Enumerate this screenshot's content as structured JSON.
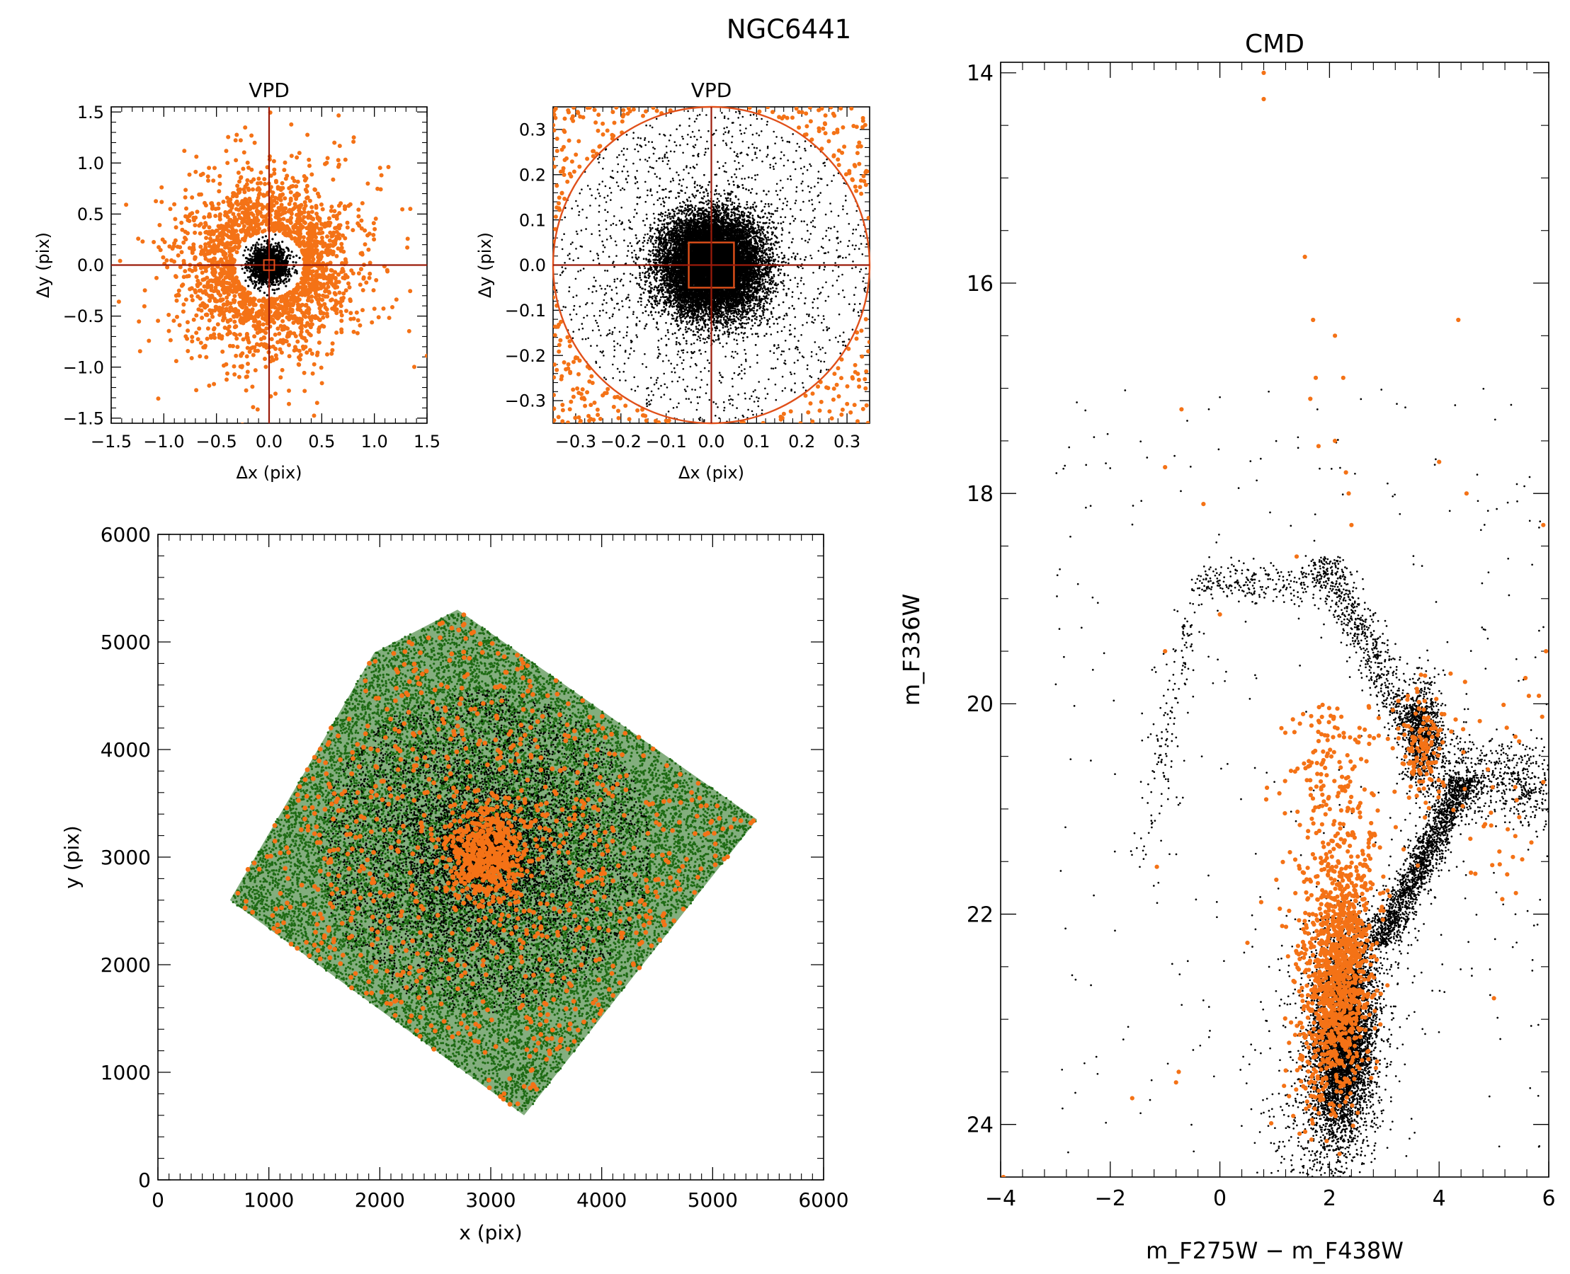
{
  "figure_title": "NGC6441",
  "colors": {
    "orange": "#f47216",
    "green": "#1e6b14",
    "black": "#000000",
    "line": "#9b1b0a",
    "circle": "#e0501a"
  },
  "chart_data": [
    {
      "id": "vpd1",
      "type": "scatter",
      "title": "VPD",
      "xlabel": "Δx (pix)",
      "ylabel": "Δy (pix)",
      "xlim": [
        -1.5,
        1.5
      ],
      "ylim": [
        -1.55,
        1.55
      ],
      "xticks": [
        -1.5,
        -1.0,
        -0.5,
        0.0,
        0.5,
        1.0,
        1.5
      ],
      "xtick_labels": [
        "−1.5",
        "−1.0",
        "−0.5",
        "0.0",
        "0.5",
        "1.0",
        "1.5"
      ],
      "yticks": [
        -1.5,
        -1.0,
        -0.5,
        0.0,
        0.5,
        1.0,
        1.5
      ],
      "ytick_labels": [
        "−1.5",
        "−1.0",
        "−0.5",
        "0.0",
        "0.5",
        "1.0",
        "1.5"
      ],
      "selection_radius": 0.33,
      "zoom_box_halfwidth": 0.05,
      "crosshair": [
        0,
        0
      ],
      "series": [
        {
          "role": "members",
          "color": "#000000",
          "distribution": "gaussian",
          "sigma": 0.09,
          "count": 1500
        },
        {
          "role": "rejected",
          "color": "#f47216",
          "distribution": "ring",
          "r_min": 0.33,
          "scale": 0.45,
          "count": 2100
        }
      ]
    },
    {
      "id": "vpd2",
      "type": "scatter",
      "title": "VPD",
      "xlabel": "Δx (pix)",
      "ylabel": "Δy (pix)",
      "xlim": [
        -0.35,
        0.35
      ],
      "ylim": [
        -0.35,
        0.35
      ],
      "xticks": [
        -0.3,
        -0.2,
        -0.1,
        0.0,
        0.1,
        0.2,
        0.3
      ],
      "xtick_labels": [
        "−0.3",
        "−0.2",
        "−0.1",
        "0.0",
        "0.1",
        "0.2",
        "0.3"
      ],
      "yticks": [
        -0.3,
        -0.2,
        -0.1,
        0.0,
        0.1,
        0.2,
        0.3
      ],
      "ytick_labels": [
        "−0.3",
        "−0.2",
        "−0.1",
        "0.0",
        "0.1",
        "0.2",
        "0.3"
      ],
      "selection_radius": 0.35,
      "zoom_box_halfwidth": 0.05,
      "crosshair": [
        0,
        0
      ],
      "series": [
        {
          "role": "members",
          "color": "#000000",
          "distribution": "gaussian",
          "sigma": 0.055,
          "count": 14000
        },
        {
          "role": "members-halo",
          "color": "#000000",
          "distribution": "uniform-disk",
          "radius": 0.35,
          "count": 1500
        },
        {
          "role": "rejected",
          "color": "#f47216",
          "distribution": "corners",
          "r_min": 0.35,
          "count": 320
        }
      ]
    },
    {
      "id": "xy",
      "type": "scatter",
      "title": "",
      "xlabel": "x (pix)",
      "ylabel": "y (pix)",
      "xlim": [
        0,
        6000
      ],
      "ylim": [
        0,
        6000
      ],
      "xticks": [
        0,
        1000,
        2000,
        3000,
        4000,
        5000,
        6000
      ],
      "xtick_labels": [
        "0",
        "1000",
        "2000",
        "3000",
        "4000",
        "5000",
        "6000"
      ],
      "yticks": [
        0,
        1000,
        2000,
        3000,
        4000,
        5000,
        6000
      ],
      "ytick_labels": [
        "0",
        "1000",
        "2000",
        "3000",
        "4000",
        "5000",
        "6000"
      ],
      "field_polygon": [
        [
          2700,
          5300
        ],
        [
          1950,
          4900
        ],
        [
          650,
          2600
        ],
        [
          3300,
          600
        ],
        [
          5400,
          3350
        ]
      ],
      "cluster_center": [
        2950,
        3050
      ],
      "series": [
        {
          "role": "all",
          "color": "#1e6b14",
          "distribution": "field-uniform",
          "count": 16000
        },
        {
          "role": "members",
          "color": "#000000",
          "distribution": "centrally-concentrated",
          "count": 9000
        },
        {
          "role": "rejected",
          "color": "#f47216",
          "distribution": "centrally-concentrated",
          "count": 1400
        }
      ]
    },
    {
      "id": "cmd",
      "type": "scatter",
      "title": "CMD",
      "xlabel": "m_F275W − m_F438W",
      "ylabel": "m_F336W",
      "xlim": [
        -4,
        6
      ],
      "ylim": [
        24.5,
        13.9
      ],
      "y_inverted": true,
      "xticks": [
        -4,
        -2,
        0,
        2,
        4,
        6
      ],
      "xtick_labels": [
        "−4",
        "−2",
        "0",
        "2",
        "4",
        "6"
      ],
      "yticks": [
        14,
        16,
        18,
        20,
        22,
        24
      ],
      "ytick_labels": [
        "14",
        "16",
        "18",
        "20",
        "22",
        "24"
      ],
      "series": [
        {
          "role": "members",
          "color": "#000000",
          "features": [
            "main-sequence",
            "turnoff",
            "red-giant-branch",
            "red-clump",
            "horizontal-branch",
            "blue-horizontal-branch"
          ],
          "count": 11000
        },
        {
          "role": "rejected",
          "color": "#f47216",
          "features": [
            "field-main-sequence",
            "field-giants"
          ],
          "count": 1600
        }
      ]
    }
  ]
}
